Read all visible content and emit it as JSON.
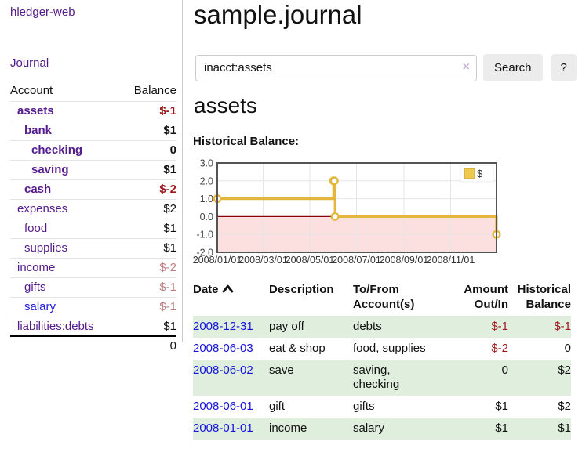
{
  "sidebar": {
    "app_title": "hledger-web",
    "nav": [
      {
        "label": "Journal"
      }
    ],
    "accounts_table": {
      "headers": {
        "account": "Account",
        "balance": "Balance"
      },
      "rows": [
        {
          "name": "assets",
          "depth": 1,
          "bold": true,
          "balance": "$-1",
          "balance_tone": "neg-strong",
          "link_tone": "purple"
        },
        {
          "name": "bank",
          "depth": 2,
          "bold": true,
          "balance": "$1",
          "balance_tone": "pos",
          "link_tone": "purple"
        },
        {
          "name": "checking",
          "depth": 3,
          "bold": true,
          "balance": "0",
          "balance_tone": "pos",
          "link_tone": "purple"
        },
        {
          "name": "saving",
          "depth": 3,
          "bold": true,
          "balance": "$1",
          "balance_tone": "pos",
          "link_tone": "purple"
        },
        {
          "name": "cash",
          "depth": 2,
          "bold": true,
          "balance": "$-2",
          "balance_tone": "neg-strong",
          "link_tone": "purple"
        },
        {
          "name": "expenses",
          "depth": 1,
          "bold": false,
          "balance": "$2",
          "balance_tone": "pos",
          "link_tone": "purple"
        },
        {
          "name": "food",
          "depth": 2,
          "bold": false,
          "balance": "$1",
          "balance_tone": "pos",
          "link_tone": "purple"
        },
        {
          "name": "supplies",
          "depth": 2,
          "bold": false,
          "balance": "$1",
          "balance_tone": "pos",
          "link_tone": "purple"
        },
        {
          "name": "income",
          "depth": 1,
          "bold": false,
          "balance": "$-2",
          "balance_tone": "neg-soft",
          "link_tone": "purple"
        },
        {
          "name": "gifts",
          "depth": 2,
          "bold": false,
          "balance": "$-1",
          "balance_tone": "neg-soft",
          "link_tone": "purple"
        },
        {
          "name": "salary",
          "depth": 2,
          "bold": false,
          "balance": "$-1",
          "balance_tone": "neg-soft",
          "link_tone": "blue"
        },
        {
          "name": "liabilities:debts",
          "depth": 1,
          "bold": false,
          "balance": "$1",
          "balance_tone": "pos",
          "link_tone": "purple"
        }
      ],
      "total": "0"
    }
  },
  "main": {
    "title": "sample.journal",
    "search": {
      "value": "inacct:assets",
      "button": "Search",
      "help_button": "?"
    },
    "account_heading": "assets",
    "chart_label": "Historical Balance:",
    "transactions": {
      "headers": {
        "date": "Date",
        "description": "Description",
        "to_from": "To/From\nAccount(s)",
        "amount": "Amount\nOut/In",
        "historical": "Historical\nBalance"
      },
      "rows": [
        {
          "date": "2008-12-31",
          "description": "pay off",
          "to_from": "debts",
          "amount": "$-1",
          "amount_neg": true,
          "historical": "$-1",
          "hist_neg": true,
          "shaded": true
        },
        {
          "date": "2008-06-03",
          "description": "eat & shop",
          "to_from": "food, supplies",
          "amount": "$-2",
          "amount_neg": true,
          "historical": "0",
          "hist_neg": false,
          "shaded": false
        },
        {
          "date": "2008-06-02",
          "description": "save",
          "to_from": "saving,\nchecking",
          "amount": "0",
          "amount_neg": false,
          "historical": "$2",
          "hist_neg": false,
          "shaded": true
        },
        {
          "date": "2008-06-01",
          "description": "gift",
          "to_from": "gifts",
          "amount": "$1",
          "amount_neg": false,
          "historical": "$2",
          "hist_neg": false,
          "shaded": false
        },
        {
          "date": "2008-01-01",
          "description": "income",
          "to_from": "salary",
          "amount": "$1",
          "amount_neg": false,
          "historical": "$1",
          "hist_neg": false,
          "shaded": true
        }
      ]
    }
  },
  "icons": {
    "sort": "chevron-up",
    "clear_search": "×",
    "help": "?"
  },
  "chart_data": {
    "type": "line",
    "step": true,
    "title": "Historical Balance",
    "x_range": [
      "2008-01-01",
      "2008-12-31"
    ],
    "series": [
      {
        "name": "$",
        "color": "#e3b73e",
        "points": [
          [
            "2008-01-01",
            1
          ],
          [
            "2008-06-01",
            2
          ],
          [
            "2008-06-02",
            2
          ],
          [
            "2008-06-03",
            0
          ],
          [
            "2008-12-31",
            -1
          ]
        ]
      }
    ],
    "x_tick_labels": [
      "2008/01/01",
      "2008/03/01",
      "2008/05/01",
      "2008/07/01",
      "2008/09/01",
      "2008/11/01"
    ],
    "x_tick_dates": [
      "2008-01-01",
      "2008-03-01",
      "2008-05-01",
      "2008-07-01",
      "2008-09-01",
      "2008-11-01"
    ],
    "y_ticks": [
      3.0,
      2.0,
      1.0,
      0.0,
      -1.0,
      -2.0
    ],
    "ylim": [
      -2,
      3
    ],
    "grid": true,
    "legend_position": "top-right",
    "colors": {
      "negative_region": "#fcdfdf",
      "zero_line": "#8b0000",
      "plot_border": "#545454",
      "gridline": "#e6e6e6",
      "marker_fill": "#ffffff",
      "legend_swatch_fill": "#ecc94f",
      "legend_swatch_border": "#cc9f33"
    }
  }
}
